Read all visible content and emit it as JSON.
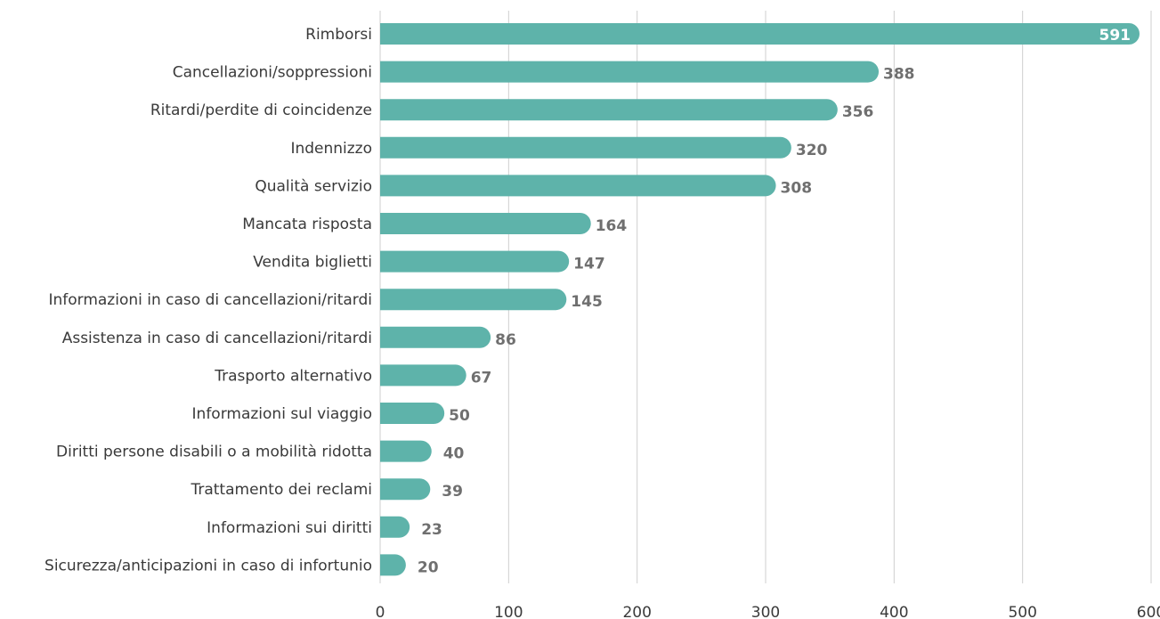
{
  "chart_data": {
    "type": "bar",
    "orientation": "horizontal",
    "categories": [
      "Rimborsi",
      "Cancellazioni/soppressioni",
      "Ritardi/perdite di coincidenze",
      "Indennizzo",
      "Qualità servizio",
      "Mancata risposta",
      "Vendita biglietti",
      "Informazioni in caso di cancellazioni/ritardi",
      "Assistenza in caso di cancellazioni/ritardi",
      "Trasporto alternativo",
      "Informazioni sul viaggio",
      "Diritti persone disabili o a mobilità ridotta",
      "Trattamento dei reclami",
      "Informazioni sui diritti",
      "Sicurezza/anticipazioni in caso di infortunio"
    ],
    "values": [
      591,
      388,
      356,
      320,
      308,
      164,
      147,
      145,
      86,
      67,
      50,
      40,
      39,
      23,
      20
    ],
    "data_labels": [
      "591",
      "388",
      "356",
      "320",
      "308",
      "164",
      "147",
      "145",
      "86",
      "67",
      "50",
      "40",
      "39",
      "23",
      "20"
    ],
    "xlim": [
      0,
      600
    ],
    "xticks": [
      0,
      100,
      200,
      300,
      400,
      500,
      600
    ],
    "xtick_labels": [
      "0",
      "100",
      "200",
      "300",
      "400",
      "500",
      "600"
    ],
    "grid": true,
    "bar_color": "#5eb3aa",
    "title": "",
    "xlabel": "",
    "ylabel": ""
  }
}
